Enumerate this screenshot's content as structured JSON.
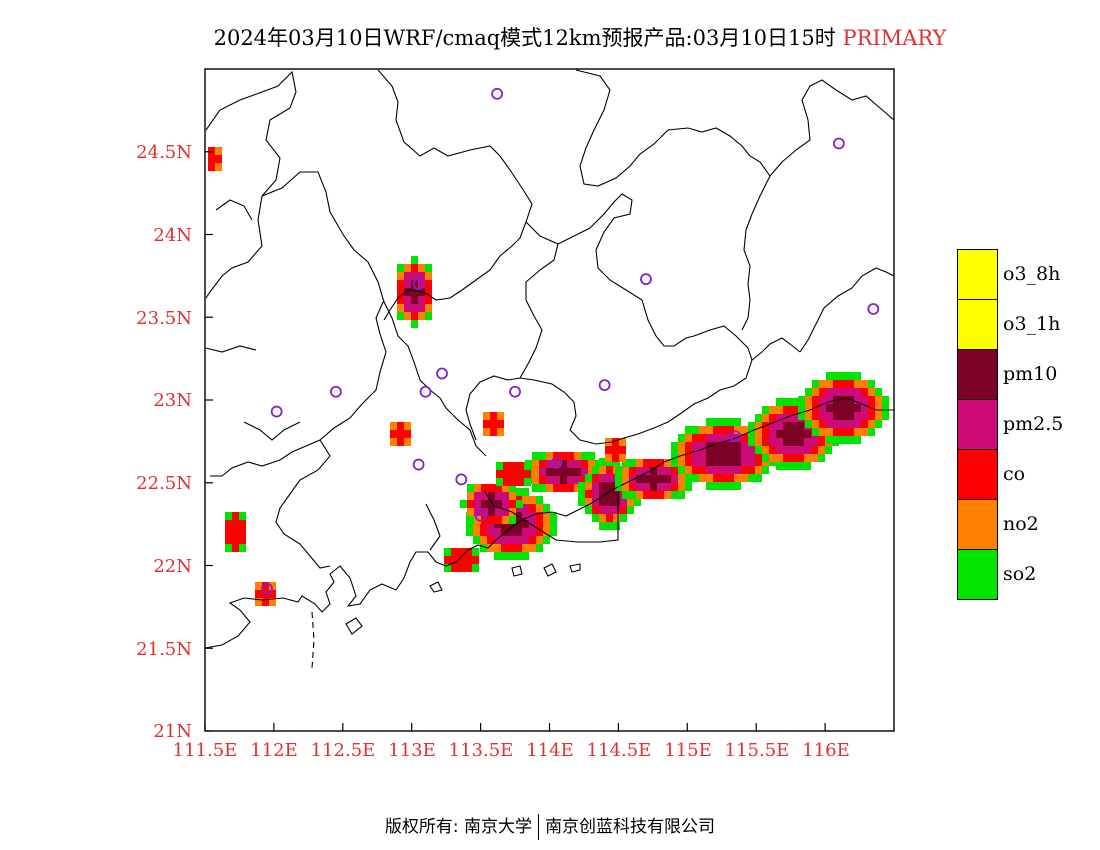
{
  "title": {
    "main": "2024年03月10日WRF/cmaq模式12km预报产品:03月10日15时",
    "tag": "PRIMARY"
  },
  "axes": {
    "lat_labels": [
      "24.5N",
      "24N",
      "23.5N",
      "23N",
      "22.5N",
      "22N",
      "21.5N",
      "21N"
    ],
    "lon_labels": [
      "111.5E",
      "112E",
      "112.5E",
      "113E",
      "113.5E",
      "114E",
      "114.5E",
      "115E",
      "115.5E",
      "116E"
    ],
    "lon_min": 111.5,
    "lon_max": 116.5,
    "lat_min": 21.0,
    "lat_max": 25.0
  },
  "legend": [
    {
      "key": "o3_8h",
      "label": "o3_8h",
      "color": "#ffff00"
    },
    {
      "key": "o3_1h",
      "label": "o3_1h",
      "color": "#ffff00"
    },
    {
      "key": "pm10",
      "label": "pm10",
      "color": "#7d0026"
    },
    {
      "key": "pm25",
      "label": "pm2.5",
      "color": "#cc0a78"
    },
    {
      "key": "co",
      "label": "co",
      "color": "#ff0000"
    },
    {
      "key": "no2",
      "label": "no2",
      "color": "#ff7f00"
    },
    {
      "key": "so2",
      "label": "so2",
      "color": "#00e400"
    }
  ],
  "stations": [
    {
      "lon": 113.62,
      "lat": 24.85
    },
    {
      "lon": 116.1,
      "lat": 24.55
    },
    {
      "lon": 113.05,
      "lat": 23.7
    },
    {
      "lon": 114.7,
      "lat": 23.73
    },
    {
      "lon": 116.35,
      "lat": 23.55
    },
    {
      "lon": 113.22,
      "lat": 23.16
    },
    {
      "lon": 112.45,
      "lat": 23.05
    },
    {
      "lon": 113.1,
      "lat": 23.05
    },
    {
      "lon": 113.75,
      "lat": 23.05
    },
    {
      "lon": 114.4,
      "lat": 23.09
    },
    {
      "lon": 112.02,
      "lat": 22.93
    },
    {
      "lon": 115.35,
      "lat": 22.78
    },
    {
      "lon": 113.05,
      "lat": 22.61
    },
    {
      "lon": 114.05,
      "lat": 22.62
    },
    {
      "lon": 113.36,
      "lat": 22.52
    },
    {
      "lon": 113.5,
      "lat": 22.3
    },
    {
      "lon": 111.95,
      "lat": 21.86
    }
  ],
  "footer": {
    "left": "版权所有: 南京大学",
    "right": "南京创蓝科技有限公司"
  }
}
